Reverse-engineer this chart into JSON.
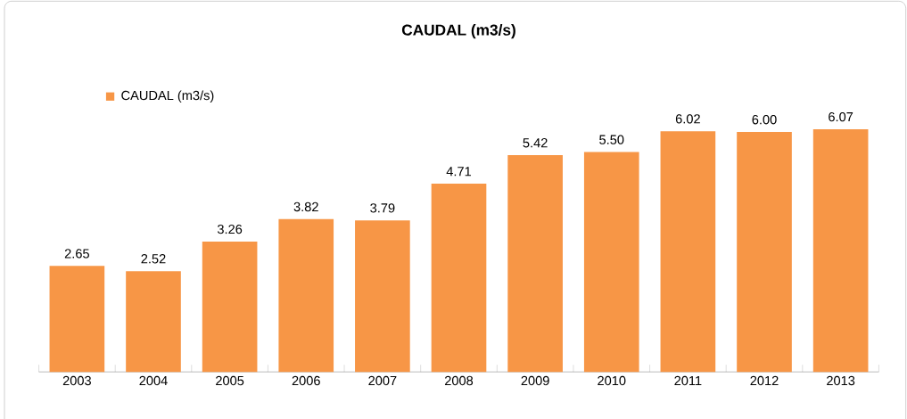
{
  "chart_data": {
    "type": "bar",
    "title": "CAUDAL (m3/s)",
    "categories": [
      "2003",
      "2004",
      "2005",
      "2006",
      "2007",
      "2008",
      "2009",
      "2010",
      "2011",
      "2012",
      "2013"
    ],
    "series": [
      {
        "name": "CAUDAL (m3/s)",
        "color": "#f79646",
        "values": [
          2.65,
          2.52,
          3.26,
          3.82,
          3.79,
          4.71,
          5.42,
          5.5,
          6.02,
          6.0,
          6.07
        ],
        "value_labels": [
          "2.65",
          "2.52",
          "3.26",
          "3.82",
          "3.79",
          "4.71",
          "5.42",
          "5.50",
          "6.02",
          "6.00",
          "6.07"
        ]
      }
    ],
    "legend": "top left"
  }
}
